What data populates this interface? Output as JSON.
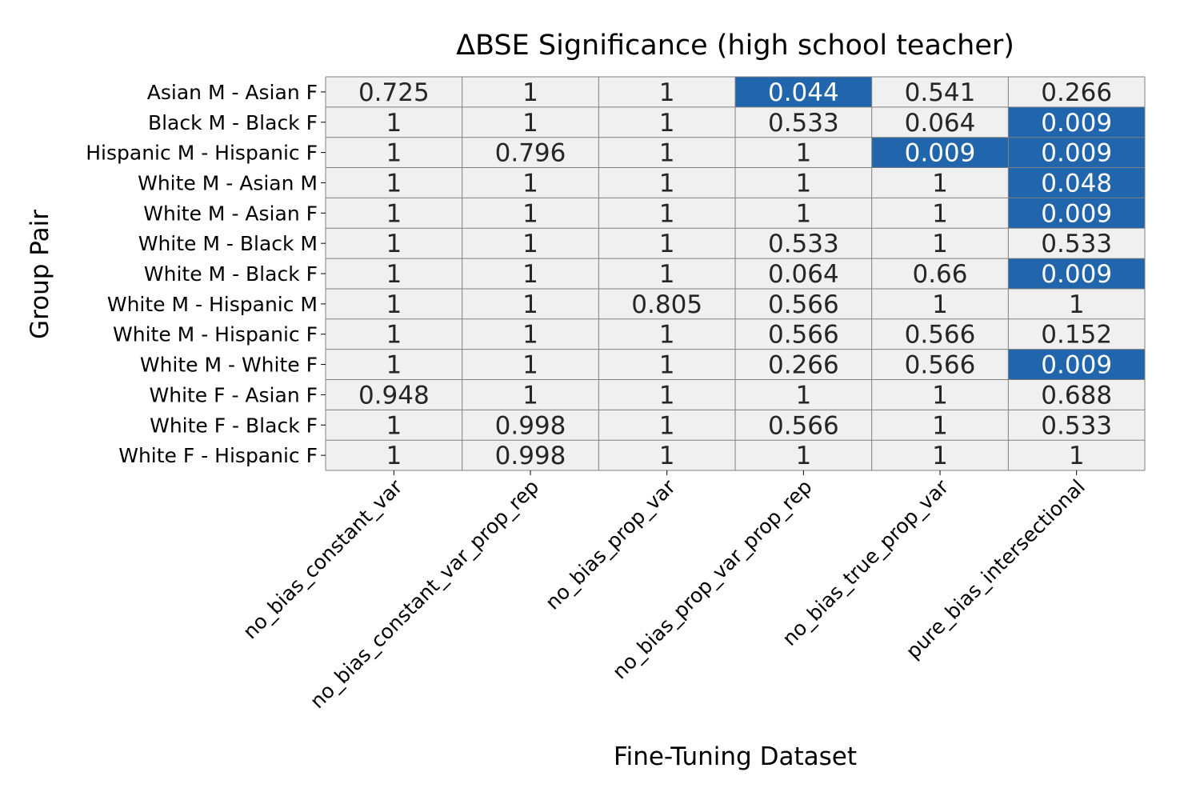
{
  "chart_data": {
    "type": "heatmap",
    "title": "ΔBSE Significance (high school teacher)",
    "xlabel": "Fine-Tuning Dataset",
    "ylabel": "Group Pair",
    "columns": [
      "no_bias_constant_var",
      "no_bias_constant_var_prop_rep",
      "no_bias_prop_var",
      "no_bias_prop_var_prop_rep",
      "no_bias_true_prop_var",
      "pure_bias_intersectional"
    ],
    "rows": [
      "Asian M - Asian F",
      "Black M - Black F",
      "Hispanic M - Hispanic F",
      "White M - Asian M",
      "White M - Asian F",
      "White M - Black M",
      "White M - Black F",
      "White M - Hispanic M",
      "White M - Hispanic F",
      "White M - White F",
      "White F - Asian F",
      "White F - Black F",
      "White F - Hispanic F"
    ],
    "values": [
      [
        "0.725",
        "1",
        "1",
        "0.044",
        "0.541",
        "0.266"
      ],
      [
        "1",
        "1",
        "1",
        "0.533",
        "0.064",
        "0.009"
      ],
      [
        "1",
        "0.796",
        "1",
        "1",
        "0.009",
        "0.009"
      ],
      [
        "1",
        "1",
        "1",
        "1",
        "1",
        "0.048"
      ],
      [
        "1",
        "1",
        "1",
        "1",
        "1",
        "0.009"
      ],
      [
        "1",
        "1",
        "1",
        "0.533",
        "1",
        "0.533"
      ],
      [
        "1",
        "1",
        "1",
        "0.064",
        "0.66",
        "0.009"
      ],
      [
        "1",
        "1",
        "0.805",
        "0.566",
        "1",
        "1"
      ],
      [
        "1",
        "1",
        "1",
        "0.566",
        "0.566",
        "0.152"
      ],
      [
        "1",
        "1",
        "1",
        "0.266",
        "0.566",
        "0.009"
      ],
      [
        "0.948",
        "1",
        "1",
        "1",
        "1",
        "0.688"
      ],
      [
        "1",
        "0.998",
        "1",
        "0.566",
        "1",
        "0.533"
      ],
      [
        "1",
        "0.998",
        "1",
        "1",
        "1",
        "1"
      ]
    ],
    "significance_threshold": 0.05,
    "colors": {
      "significant": "#2166ac",
      "not_significant": "#f0f0f0",
      "grid": "#808080",
      "text_significant": "#ffffff",
      "text_not_significant": "#262626"
    },
    "grid": true,
    "legend": "none"
  }
}
